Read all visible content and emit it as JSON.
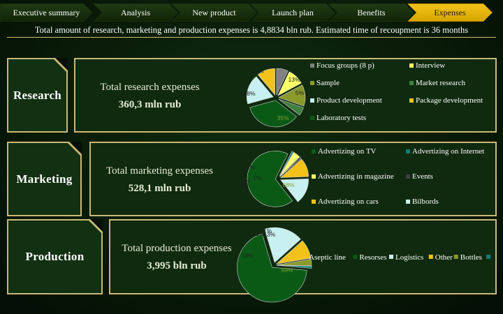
{
  "nav": {
    "tabs": [
      {
        "label": "Executive summary",
        "active": false
      },
      {
        "label": "Analysis",
        "active": false
      },
      {
        "label": "New product",
        "active": false
      },
      {
        "label": "Launch plan",
        "active": false
      },
      {
        "label": "Benefits",
        "active": false
      },
      {
        "label": "Expenses",
        "active": true
      }
    ]
  },
  "headline": "Total amount of research, marketing and production expenses is 4,8834 bln rub. Estimated time of recoupment is 36 months",
  "sections": {
    "research": {
      "label": "Research",
      "title": "Total research expenses",
      "value": "360,3 mln rub"
    },
    "marketing": {
      "label": "Marketing",
      "title": "Total marketing expenses",
      "value": "528,1 mln rub"
    },
    "production": {
      "label": "Production",
      "title": "Total production expenses",
      "value": "3,995 bln rub"
    }
  },
  "colors": {
    "gold": "#f2c21a",
    "green_dark": "#0a5a16",
    "cyan_light": "#c8f0f0",
    "yellow": "#ffff66",
    "gray": "#808080",
    "teal": "#117d7d",
    "olive": "#8a9a2a",
    "charcoal": "#404040",
    "greenish": "#3f7f3f"
  },
  "chart_data": [
    {
      "id": "research",
      "type": "pie",
      "title": "",
      "slices": [
        {
          "name": "Focus groups (8 p)",
          "value": 7,
          "label": "7%",
          "color": "#808080"
        },
        {
          "name": "Interview",
          "value": 10,
          "label": "10%",
          "color": "#ffff66"
        },
        {
          "name": "Sample",
          "value": 13,
          "label": "13%",
          "color": "#8a9a2a"
        },
        {
          "name": "Market research",
          "value": 5,
          "label": "5%",
          "color": "#3f7f3f"
        },
        {
          "name": "Laboratory tests",
          "value": 35,
          "label": "35%",
          "color": "#0a5a16"
        },
        {
          "name": "Product development",
          "value": 18,
          "label": "18%",
          "color": "#c8f0f0"
        },
        {
          "name": "Package development",
          "value": 11,
          "label": "11%",
          "color": "#f2c21a"
        }
      ],
      "legend": [
        "Focus groups (8 p)",
        "Interview",
        "Sample",
        "Market research",
        "Product development",
        "Package development",
        "Laboratory tests"
      ]
    },
    {
      "id": "marketing",
      "type": "pie",
      "title": "",
      "slices": [
        {
          "name": "Advertizing on TV",
          "value": 68,
          "label": "68%",
          "color": "#0a5a16"
        },
        {
          "name": "Advertizing on Internet",
          "value": 1,
          "label": "1%",
          "color": "#117d7d"
        },
        {
          "name": "Advertizing in magazine",
          "value": 4,
          "label": "4%",
          "color": "#ffff66"
        },
        {
          "name": "Events",
          "value": 1,
          "label": "1%",
          "color": "#404040"
        },
        {
          "name": "Advertizing on cars",
          "value": 11,
          "label": "11%",
          "color": "#f2c21a"
        },
        {
          "name": "Bilbords",
          "value": 15,
          "label": "15%",
          "color": "#c8f0f0"
        }
      ],
      "legend": [
        "Advertizing on TV",
        "Advertizing on Internet",
        "Advertizing in magazine",
        "Events",
        "Advertizing on cars",
        "Bilbords"
      ]
    },
    {
      "id": "production",
      "type": "pie",
      "title": "",
      "slices": [
        {
          "name": "Aseptic line",
          "value": 69,
          "label": "69%",
          "color": "#0a5a16"
        },
        {
          "name": "Resorses",
          "value": 18,
          "label": "18%",
          "color": "#c8f0f0"
        },
        {
          "name": "Logistics",
          "value": 9,
          "label": "9%",
          "color": "#f2c21a"
        },
        {
          "name": "Other",
          "value": 3,
          "label": "3%",
          "color": "#8a9a2a"
        },
        {
          "name": "Bottles",
          "value": 1,
          "label": "1%",
          "color": "#117d7d"
        }
      ],
      "legend": [
        "Aseptic line",
        "Resorses",
        "Logistics",
        "Other",
        "Bottles"
      ]
    }
  ]
}
